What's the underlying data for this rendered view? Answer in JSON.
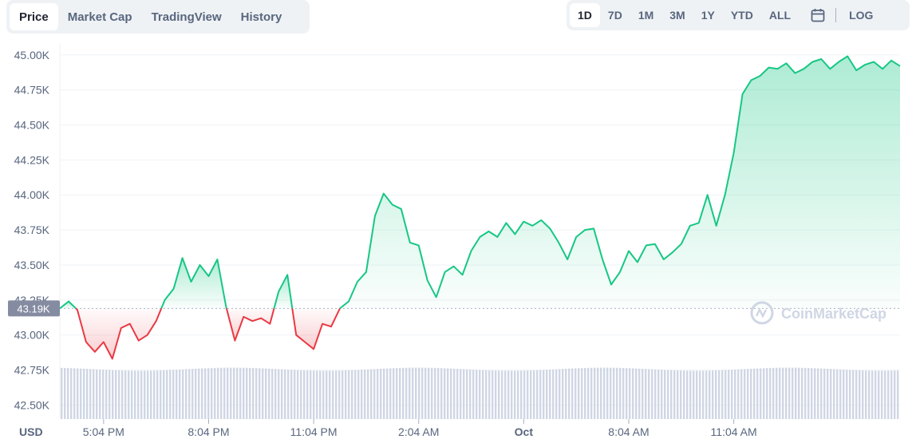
{
  "tabs": [
    "Price",
    "Market Cap",
    "TradingView",
    "History"
  ],
  "active_tab": "Price",
  "ranges": [
    "1D",
    "7D",
    "1M",
    "3M",
    "1Y",
    "YTD",
    "ALL"
  ],
  "active_range": "1D",
  "log_label": "LOG",
  "currency_label": "USD",
  "current_price_label": "43.19K",
  "watermark": "CoinMarketCap",
  "colors": {
    "up": "#16c784",
    "down": "#ea3943",
    "grid": "#eff2f5",
    "volume": "#cfd6e4"
  },
  "chart_data": {
    "type": "area",
    "yticks": [
      "42.50K",
      "42.75K",
      "43.00K",
      "43.25K",
      "43.50K",
      "43.75K",
      "44.00K",
      "44.25K",
      "44.50K",
      "44.75K",
      "45.00K"
    ],
    "ylim": [
      42400,
      45050
    ],
    "xticks": [
      "5:04 PM",
      "8:04 PM",
      "11:04 PM",
      "2:04 AM",
      "Oct",
      "8:04 AM",
      "11:04 AM"
    ],
    "baseline": 43190,
    "x_hours": [
      0,
      0.5,
      1,
      1.5,
      2,
      2.5,
      3,
      3.5,
      4,
      4.5,
      5,
      5.5,
      6,
      6.5,
      7,
      7.5,
      8,
      8.5,
      9,
      9.5,
      10,
      10.5,
      11,
      11.5,
      12,
      12.5,
      13,
      13.5,
      14,
      14.5,
      15,
      15.5,
      16,
      16.5,
      17,
      17.5,
      18,
      18.5,
      19,
      19.5,
      20,
      20.5,
      21,
      21.5,
      22,
      22.5,
      23,
      23.5,
      24,
      24.5,
      25,
      25.5,
      26,
      26.5,
      27,
      27.5,
      28,
      28.5,
      29,
      29.5,
      30,
      30.5,
      31,
      31.5,
      32,
      32.5,
      33,
      33.5,
      34,
      34.5,
      35,
      35.5,
      36,
      36.5,
      37,
      37.5,
      38,
      38.5,
      39,
      39.5,
      40,
      40.5,
      41,
      41.5,
      42,
      42.5,
      43,
      43.5,
      44,
      44.5,
      45,
      45.5,
      46,
      46.5,
      47,
      47.5,
      48
    ],
    "prices": [
      43190,
      43240,
      43180,
      42950,
      42880,
      42950,
      42830,
      43050,
      43080,
      42960,
      43000,
      43100,
      43250,
      43330,
      43550,
      43380,
      43500,
      43420,
      43540,
      43200,
      42960,
      43130,
      43100,
      43120,
      43080,
      43310,
      43430,
      43000,
      42950,
      42900,
      43080,
      43060,
      43190,
      43240,
      43380,
      43450,
      43850,
      44010,
      43930,
      43900,
      43660,
      43640,
      43390,
      43270,
      43450,
      43490,
      43430,
      43600,
      43700,
      43740,
      43700,
      43800,
      43720,
      43810,
      43780,
      43820,
      43760,
      43660,
      43540,
      43700,
      43750,
      43760,
      43540,
      43360,
      43450,
      43600,
      43520,
      43640,
      43650,
      43540,
      43590,
      43650,
      43780,
      43800,
      44000,
      43780,
      44000,
      44300,
      44720,
      44820,
      44850,
      44910,
      44900,
      44940,
      44870,
      44900,
      44950,
      44970,
      44900,
      44950,
      44990,
      44890,
      44930,
      44950,
      44900,
      44960,
      44920
    ],
    "volume_level": 0.92
  }
}
